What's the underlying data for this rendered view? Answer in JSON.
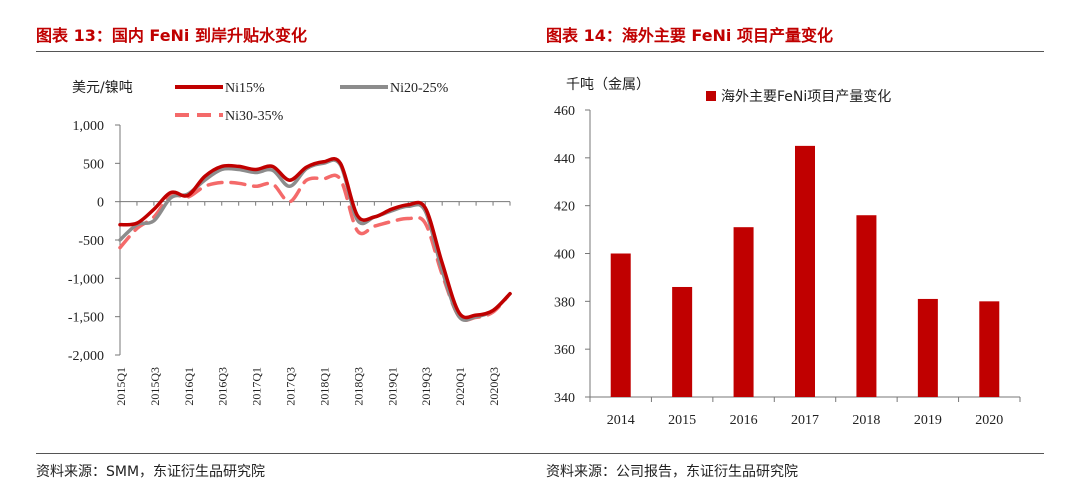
{
  "left": {
    "title": "图表 13：国内 FeNi 到岸升贴水变化",
    "source": "资料来源：SMM，东证衍生品研究院"
  },
  "right": {
    "title": "图表 14：海外主要 FeNi 项目产量变化",
    "source": "资料来源：公司报告，东证衍生品研究院"
  },
  "chart_data": [
    {
      "type": "line",
      "ylabel": "美元/镍吨",
      "ylim": [
        -2000,
        1000
      ],
      "yticks": [
        1000,
        500,
        0,
        -500,
        -1000,
        -1500,
        -2000
      ],
      "ytick_labels": [
        "1,000",
        "500",
        "0",
        "-500",
        "-1,000",
        "-1,500",
        "-2,000"
      ],
      "xlim": [
        0,
        23
      ],
      "xticks": [
        0,
        2,
        4,
        6,
        8,
        10,
        12,
        14,
        16,
        18,
        20,
        22
      ],
      "xtick_labels": [
        "2015Q1",
        "2015Q3",
        "2016Q1",
        "2016Q3",
        "2017Q1",
        "2017Q3",
        "2018Q1",
        "2018Q3",
        "2019Q1",
        "2019Q3",
        "2020Q1",
        "2020Q3"
      ],
      "legend": "top",
      "series": [
        {
          "name": "Ni15%",
          "color": "#c00000",
          "dash": "solid",
          "points": [
            [
              0,
              -300
            ],
            [
              1,
              -280
            ],
            [
              2,
              -100
            ],
            [
              3,
              120
            ],
            [
              4,
              80
            ],
            [
              5,
              330
            ],
            [
              6,
              460
            ],
            [
              7,
              460
            ],
            [
              8,
              420
            ],
            [
              9,
              460
            ],
            [
              10,
              280
            ],
            [
              11,
              450
            ],
            [
              12,
              520
            ],
            [
              13,
              500
            ],
            [
              14,
              -180
            ],
            [
              15,
              -200
            ],
            [
              16,
              -100
            ],
            [
              17,
              -40
            ],
            [
              18,
              -80
            ],
            [
              19,
              -800
            ],
            [
              20,
              -1450
            ],
            [
              21,
              -1480
            ],
            [
              22,
              -1420
            ],
            [
              23,
              -1200
            ]
          ]
        },
        {
          "name": "Ni20-25%",
          "color": "#8c8c8c",
          "dash": "solid",
          "points": [
            [
              0,
              -500
            ],
            [
              1,
              -300
            ],
            [
              2,
              -250
            ],
            [
              3,
              50
            ],
            [
              4,
              100
            ],
            [
              5,
              280
            ],
            [
              6,
              420
            ],
            [
              7,
              420
            ],
            [
              8,
              380
            ],
            [
              9,
              410
            ],
            [
              10,
              200
            ],
            [
              11,
              430
            ],
            [
              12,
              500
            ],
            [
              13,
              480
            ],
            [
              14,
              -240
            ],
            [
              15,
              -200
            ],
            [
              16,
              -120
            ],
            [
              17,
              -60
            ],
            [
              18,
              -120
            ],
            [
              19,
              -900
            ],
            [
              20,
              -1500
            ],
            [
              21,
              -1500
            ],
            [
              22,
              -1420
            ],
            [
              23,
              -1200
            ]
          ]
        },
        {
          "name": "Ni30-35%",
          "color": "#f46a6a",
          "dash": "dash",
          "points": [
            [
              0,
              -600
            ],
            [
              1,
              -350
            ],
            [
              2,
              -200
            ],
            [
              3,
              80
            ],
            [
              4,
              60
            ],
            [
              5,
              200
            ],
            [
              6,
              250
            ],
            [
              7,
              240
            ],
            [
              8,
              200
            ],
            [
              9,
              230
            ],
            [
              10,
              0
            ],
            [
              11,
              280
            ],
            [
              12,
              300
            ],
            [
              13,
              290
            ],
            [
              14,
              -380
            ],
            [
              15,
              -320
            ],
            [
              16,
              -260
            ],
            [
              17,
              -220
            ],
            [
              18,
              -280
            ],
            [
              19,
              -950
            ],
            [
              20,
              -1500
            ],
            [
              21,
              -1510
            ],
            [
              22,
              -1440
            ],
            [
              23,
              -1200
            ]
          ]
        }
      ]
    },
    {
      "type": "bar",
      "ylabel": "千吨（金属）",
      "ylim": [
        340,
        460
      ],
      "yticks": [
        340,
        360,
        380,
        400,
        420,
        440,
        460
      ],
      "categories": [
        "2014",
        "2015",
        "2016",
        "2017",
        "2018",
        "2019",
        "2020"
      ],
      "legend": "top-right",
      "series": [
        {
          "name": "海外主要FeNi项目产量变化",
          "color": "#c00000",
          "values": [
            400,
            386,
            411,
            445,
            416,
            381,
            380
          ]
        }
      ]
    }
  ]
}
